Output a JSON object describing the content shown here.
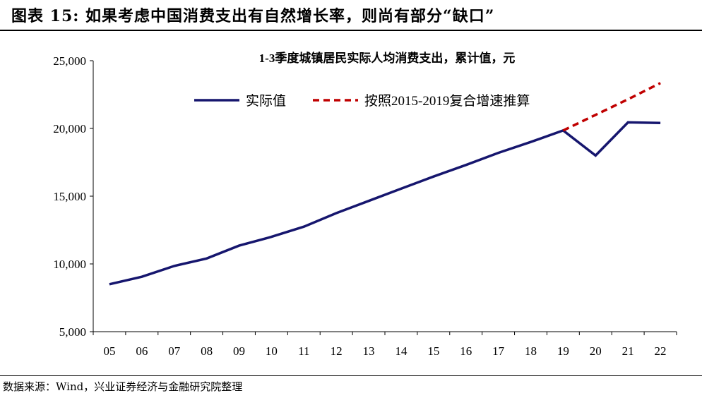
{
  "figure": {
    "title": "图表 15:   如果考虑中国消费支出有自然增长率，则尚有部分“缺口”",
    "source": "数据来源：Wind，兴业证券经济与金融研究院整理"
  },
  "chart_data": {
    "type": "line",
    "title": "1-3季度城镇居民实际人均消费支出，累计值，元",
    "xlabel": "",
    "ylabel": "",
    "categories": [
      "05",
      "06",
      "07",
      "08",
      "09",
      "10",
      "11",
      "12",
      "13",
      "14",
      "15",
      "16",
      "17",
      "18",
      "19",
      "20",
      "21",
      "22"
    ],
    "ylim": [
      5000,
      25000
    ],
    "yticks": [
      5000,
      10000,
      15000,
      20000,
      25000
    ],
    "ytick_labels": [
      "5,000",
      "10,000",
      "15,000",
      "20,000",
      "25,000"
    ],
    "grid": false,
    "legend_position": "top",
    "series": [
      {
        "name": "实际值",
        "color": "#16166e",
        "style": "solid",
        "values": [
          8500,
          9050,
          9850,
          10400,
          11350,
          12000,
          12750,
          13750,
          14650,
          15550,
          16450,
          17300,
          18200,
          19000,
          19850,
          18000,
          20450,
          20400
        ]
      },
      {
        "name": "按照2015-2019复合增速推算",
        "color": "#c00000",
        "style": "dashed",
        "values": [
          null,
          null,
          null,
          null,
          null,
          null,
          null,
          null,
          null,
          null,
          null,
          null,
          null,
          null,
          19850,
          21000,
          22150,
          23350
        ]
      }
    ]
  }
}
